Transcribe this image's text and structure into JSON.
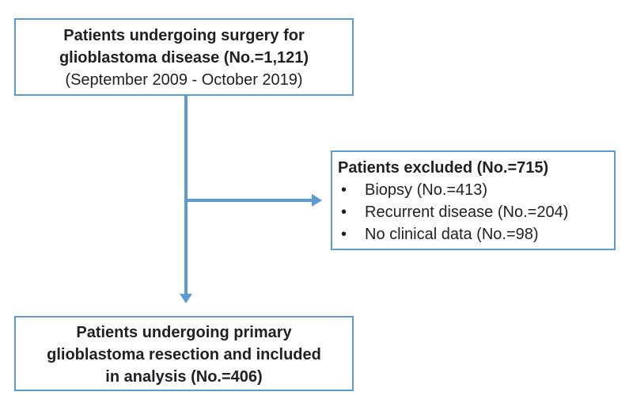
{
  "diagram": {
    "type": "patient-flow-diagram",
    "colors": {
      "accent_blue": "#5B9BD5",
      "text": "#212121",
      "background": "#FFFFFF"
    },
    "boxes": {
      "top": {
        "line1": "Patients undergoing surgery for",
        "line2": "glioblastoma disease (No.=1,121)",
        "line3": "(September 2009 - October 2019)"
      },
      "excluded": {
        "title": "Patients excluded (No.=715)",
        "bullet": "•",
        "items": [
          {
            "label": "Biopsy (No.=413)"
          },
          {
            "label": "Recurrent disease (No.=204)"
          },
          {
            "label": "No clinical data (No.=98)"
          }
        ]
      },
      "bottom": {
        "line1": "Patients undergoing primary",
        "line2": "glioblastoma resection and included",
        "line3": "in analysis (No.=406)"
      }
    }
  }
}
